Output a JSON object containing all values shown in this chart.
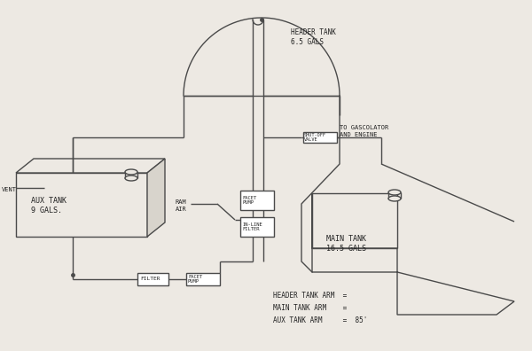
{
  "bg_color": "#ede9e3",
  "line_color": "#4a4a4a",
  "text_color": "#222222",
  "lw": 1.0,
  "annotations": {
    "header_tank": "HEADER TANK\n6.5 GALS",
    "aux_tank": "AUX TANK\n9 GALS.",
    "main_tank": "MAIN TANK\n16.5 GALS",
    "ram_air": "RAM\nAIR",
    "vent": "VENT",
    "facet_pump1": "FACET\nPUMP",
    "in_line_filter": "IN-LINE\nFILTER",
    "shut_off_valve": "SHUT-OFF\nVALVE",
    "to_gascolator": "TO GASCOLATOR\nAND ENGINE",
    "filter": "FILTER",
    "facet_pump2": "FACET\nPUMP",
    "header_arm": "HEADER TANK ARM  =",
    "main_arm": "MAIN TANK ARM    =",
    "aux_arm": "AUX TANK ARM     =  85'"
  }
}
